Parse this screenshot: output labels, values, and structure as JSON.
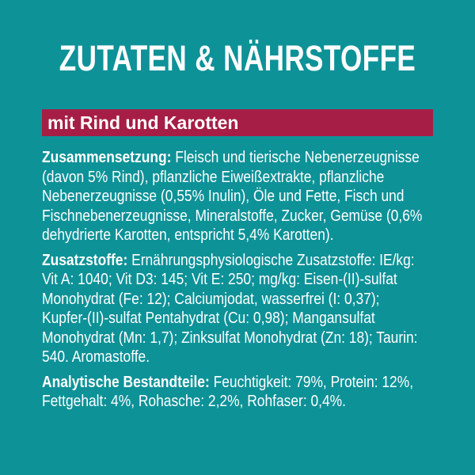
{
  "colors": {
    "background": "#0d9298",
    "banner": "#a61e45",
    "text": "#ffffff"
  },
  "header": {
    "title": "ZUTATEN & NÄHRSTOFFE",
    "banner": "mit Rind und Karotten"
  },
  "paragraphs": [
    {
      "label": "Zusammensetzung:",
      "lines": [
        "Fleisch und tierische Nebenerzeugnisse",
        "(davon 5% Rind), pflanzliche Eiweißextrakte, pflanzliche",
        "Nebenerzeugnisse (0,55% Inulin), Öle und Fette, Fisch und",
        "Fischnebenerzeugnisse, Mineralstoffe, Zucker, Gemüse (0,6%",
        "dehydrierte Karotten, entspricht 5,4% Karotten)."
      ]
    },
    {
      "label": "Zusatzstoffe:",
      "lines": [
        "Ernährungsphysiologische Zusatzstoffe: IE/kg:",
        "Vit A: 1040; Vit D3: 145; Vit E: 250; mg/kg: Eisen-(II)-sulfat",
        "Monohydrat (Fe: 12); Calciumjodat, wasserfrei (I: 0,37);",
        "Kupfer-(II)-sulfat Pentahydrat (Cu: 0,98); Mangansulfat",
        "Monohydrat (Mn: 1,7); Zinksulfat Monohydrat (Zn: 18); Taurin:",
        "540. Aromastoffe."
      ]
    },
    {
      "label": "Analytische Bestandteile:",
      "lines": [
        "Feuchtigkeit: 79%, Protein: 12%,",
        "Fettgehalt: 4%, Rohasche: 2,2%, Rohfaser: 0,4%."
      ]
    }
  ]
}
